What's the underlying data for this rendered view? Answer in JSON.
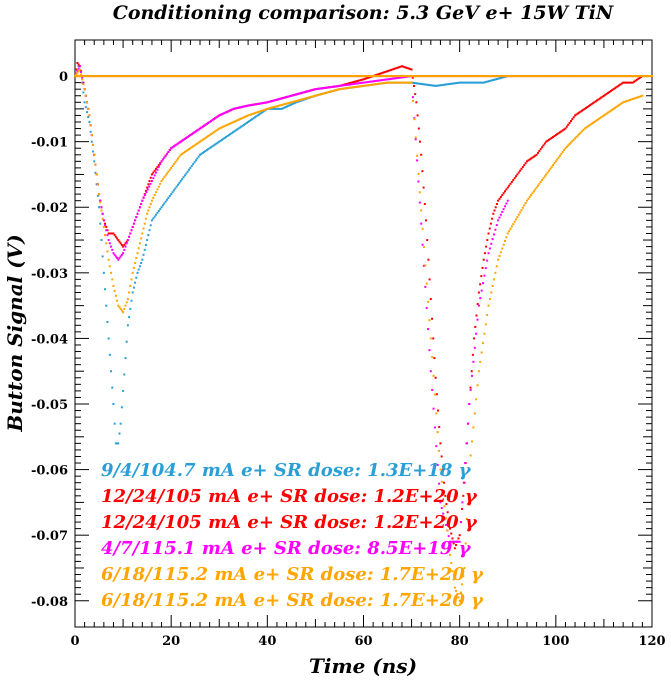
{
  "chart_data": {
    "type": "scatter",
    "title": "Conditioning comparison: 5.3 GeV e+ 15W TiN",
    "xlabel": "Time (ns)",
    "ylabel": "Button Signal (V)",
    "xlim": [
      0,
      120
    ],
    "ylim": [
      -0.084,
      0.0055
    ],
    "grid": false,
    "legend_position": "bottom-left",
    "x_ticks": [
      "0",
      "20",
      "40",
      "60",
      "80",
      "100",
      "120"
    ],
    "y_ticks": [
      "0",
      "-0.01",
      "-0.02",
      "-0.03",
      "-0.04",
      "-0.05",
      "-0.06",
      "-0.07",
      "-0.08"
    ],
    "series": [
      {
        "name": "9/4/104.7 mA e+ SR dose: 1.3E+18 γ",
        "color": "#2a9fd6",
        "x": [
          0,
          0.5,
          1,
          1.5,
          2,
          3,
          4,
          5,
          6,
          7,
          8,
          8.5,
          9,
          9.5,
          10,
          10.5,
          11,
          12,
          13,
          14,
          15,
          16,
          18,
          20,
          22,
          24,
          26,
          28,
          30,
          32,
          34,
          36,
          38,
          40,
          43,
          46,
          50,
          55,
          60,
          65,
          70,
          75,
          80,
          85,
          90
        ],
        "y": [
          0,
          0.002,
          0.001,
          -0.001,
          -0.004,
          -0.007,
          -0.013,
          -0.02,
          -0.03,
          -0.04,
          -0.05,
          -0.056,
          -0.056,
          -0.053,
          -0.048,
          -0.043,
          -0.038,
          -0.033,
          -0.03,
          -0.028,
          -0.025,
          -0.022,
          -0.02,
          -0.018,
          -0.016,
          -0.014,
          -0.012,
          -0.011,
          -0.01,
          -0.009,
          -0.008,
          -0.007,
          -0.006,
          -0.005,
          -0.005,
          -0.004,
          -0.003,
          -0.002,
          -0.0015,
          -0.001,
          -0.001,
          -0.0015,
          -0.001,
          -0.001,
          0
        ]
      },
      {
        "name": "12/24/105 mA e+ SR dose: 1.2E+20 γ",
        "color": "#ff0000",
        "x": [
          0,
          0.5,
          1,
          1.5,
          2,
          3,
          4,
          5,
          6,
          7,
          8,
          9,
          10,
          11,
          12,
          13,
          14,
          15,
          16,
          18,
          20,
          22,
          24,
          26,
          28,
          30,
          33,
          36,
          40,
          45,
          50,
          55,
          60,
          64,
          66,
          68,
          70,
          71,
          72,
          73,
          74,
          75,
          76,
          77,
          78,
          79,
          80,
          81,
          82,
          83,
          84,
          85,
          86,
          87,
          88,
          90,
          92,
          94,
          96,
          98,
          100,
          102,
          104,
          106,
          108,
          110,
          112,
          114,
          116,
          118
        ],
        "y": [
          0,
          0.002,
          0.0015,
          0,
          -0.002,
          -0.006,
          -0.012,
          -0.018,
          -0.022,
          -0.024,
          -0.024,
          -0.025,
          -0.026,
          -0.025,
          -0.023,
          -0.021,
          -0.019,
          -0.017,
          -0.015,
          -0.013,
          -0.011,
          -0.01,
          -0.009,
          -0.008,
          -0.007,
          -0.006,
          -0.005,
          -0.0045,
          -0.004,
          -0.003,
          -0.002,
          -0.0015,
          -0.0005,
          0.0005,
          0.001,
          0.0015,
          0.001,
          -0.004,
          -0.012,
          -0.022,
          -0.034,
          -0.046,
          -0.056,
          -0.064,
          -0.069,
          -0.072,
          -0.07,
          -0.062,
          -0.05,
          -0.04,
          -0.033,
          -0.028,
          -0.024,
          -0.021,
          -0.019,
          -0.017,
          -0.015,
          -0.013,
          -0.012,
          -0.01,
          -0.009,
          -0.008,
          -0.006,
          -0.005,
          -0.004,
          -0.003,
          -0.002,
          -0.001,
          -0.001,
          0
        ]
      },
      {
        "name": "12/24/105 mA e+ SR dose: 1.2E+20 γ",
        "color": "#ff0000",
        "x": [
          0,
          120
        ],
        "y": [
          0,
          0
        ]
      },
      {
        "name": "4/7/115.1 mA e+ SR dose: 8.5E+19 γ",
        "color": "#ff00ff",
        "x": [
          0,
          1,
          2,
          3,
          4,
          5,
          6,
          7,
          8,
          9,
          10,
          11,
          12,
          13,
          14,
          16,
          18,
          20,
          22,
          24,
          26,
          28,
          30,
          33,
          36,
          40,
          45,
          50,
          55,
          60,
          65,
          70,
          74,
          76,
          78,
          80,
          82,
          84,
          86,
          88,
          90
        ],
        "y": [
          0,
          0.0015,
          -0.002,
          -0.006,
          -0.012,
          -0.018,
          -0.022,
          -0.025,
          -0.027,
          -0.028,
          -0.027,
          -0.025,
          -0.023,
          -0.021,
          -0.019,
          -0.016,
          -0.013,
          -0.011,
          -0.01,
          -0.009,
          -0.008,
          -0.007,
          -0.006,
          -0.005,
          -0.0045,
          -0.004,
          -0.003,
          -0.002,
          -0.0015,
          -0.001,
          -0.0005,
          0,
          -0.045,
          -0.065,
          -0.071,
          -0.071,
          -0.05,
          -0.035,
          -0.027,
          -0.022,
          -0.019
        ]
      },
      {
        "name": "6/18/115.2 mA e+ SR dose: 1.7E+20 γ",
        "color": "#ffa500",
        "x": [
          0,
          1,
          2,
          3,
          4,
          5,
          6,
          7,
          8,
          9,
          10,
          11,
          12,
          13,
          14,
          15,
          16,
          18,
          20,
          22,
          24,
          26,
          28,
          30,
          33,
          36,
          40,
          45,
          50,
          55,
          60,
          65,
          70,
          74,
          76,
          78,
          79,
          80,
          81,
          82,
          84,
          86,
          88,
          90,
          94,
          98,
          102,
          106,
          110,
          114,
          118
        ],
        "y": [
          0,
          0.001,
          -0.002,
          -0.006,
          -0.012,
          -0.018,
          -0.023,
          -0.028,
          -0.032,
          -0.035,
          -0.036,
          -0.034,
          -0.03,
          -0.027,
          -0.024,
          -0.021,
          -0.019,
          -0.016,
          -0.014,
          -0.012,
          -0.011,
          -0.01,
          -0.009,
          -0.008,
          -0.007,
          -0.006,
          -0.005,
          -0.004,
          -0.003,
          -0.002,
          -0.0015,
          -0.001,
          -0.001,
          -0.04,
          -0.06,
          -0.073,
          -0.078,
          -0.08,
          -0.075,
          -0.06,
          -0.045,
          -0.035,
          -0.028,
          -0.024,
          -0.019,
          -0.015,
          -0.011,
          -0.008,
          -0.006,
          -0.004,
          -0.003
        ]
      },
      {
        "name": "6/18/115.2 mA e+ SR dose: 1.7E+20 γ",
        "color": "#ffa500",
        "x": [
          0,
          120
        ],
        "y": [
          0,
          0
        ]
      }
    ]
  }
}
